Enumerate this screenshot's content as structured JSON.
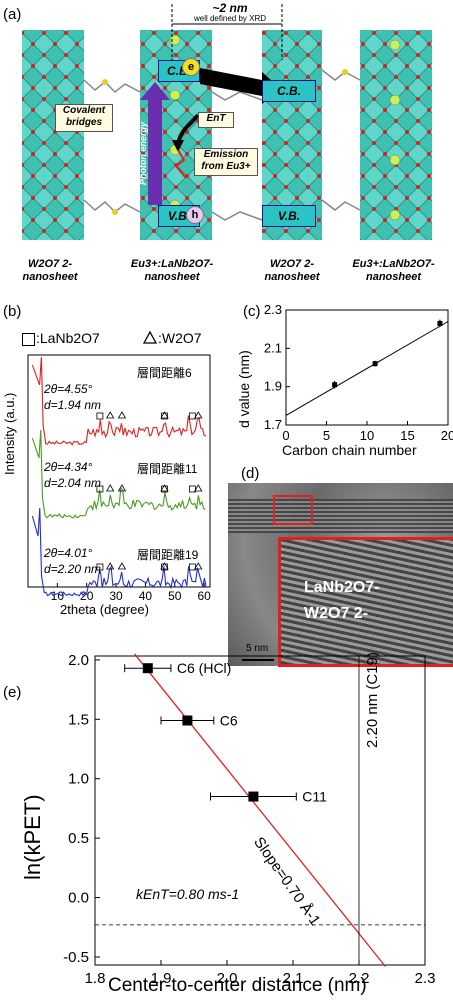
{
  "panel_a": {
    "label": "(a)",
    "dim_label": "~2 nm",
    "dim_sub": "well defined by XRD",
    "cb_label": "C.B.",
    "vb_label": "V.B.",
    "e_label": "e",
    "h_label": "h",
    "pet_label": "PET",
    "ent_label": "EnT",
    "photon_label": "Photon energy",
    "covalent_label": "Covalent bridges",
    "emission_label": "Emission from Eu3+",
    "sheets": [
      "W2O7 2- nanosheet",
      "Eu3+:LaNb2O7- nanosheet",
      "W2O7 2- nanosheet",
      "Eu3+:LaNb2O7- nanosheet"
    ]
  },
  "panel_b": {
    "label": "(b)",
    "legend_square": ":LaNb2O7",
    "legend_triangle": ":W2O7",
    "ylabel": "Intensity (a.u.)",
    "xlabel": "2theta (degree)",
    "xticks": [
      "10",
      "20",
      "30",
      "40",
      "50",
      "60"
    ],
    "traces": [
      {
        "name": "層間距離6",
        "color": "#e02020",
        "theta": "2θ=4.55°",
        "d": "d=1.94 nm"
      },
      {
        "name": "層間距離11",
        "color": "#4a9a20",
        "theta": "2θ=4.34°",
        "d": "d=2.04 nm"
      },
      {
        "name": "層間距離19",
        "color": "#2030d0",
        "theta": "2θ=4.01°",
        "d": "d=2.20 nm"
      }
    ]
  },
  "panel_c": {
    "label": "(c)",
    "xlabel": "Carbon chain number",
    "ylabel": "d value (nm)",
    "xticks": [
      "0",
      "5",
      "10",
      "15",
      "20"
    ],
    "yticks": [
      "1.7",
      "1.9",
      "2.1",
      "2.3"
    ]
  },
  "panel_d": {
    "label": "(d)",
    "inset_top": "LaNb2O7-",
    "inset_bottom": "W2O7 2-",
    "scale": "5 nm"
  },
  "panel_e": {
    "label": "(e)",
    "ylabel": "ln(kPET)",
    "xlabel": "Center-to-center distance (nm)",
    "vline_label": "2.20 nm (C19)",
    "hline_label": "kEnT=0.80 ms-1",
    "slope_label": "Slope=0.70 Å-1",
    "xticks": [
      "1.8",
      "1.9",
      "2.0",
      "2.1",
      "2.2",
      "2.3"
    ],
    "yticks": [
      "-0.5",
      "0.0",
      "0.5",
      "1.0",
      "1.5",
      "2.0"
    ]
  },
  "chart_data": [
    {
      "type": "scatter",
      "panel": "(c)",
      "xlabel": "Carbon chain number",
      "ylabel": "d value (nm)",
      "xlim": [
        0,
        20
      ],
      "ylim": [
        1.7,
        2.3
      ],
      "x": [
        6,
        11,
        19
      ],
      "y": [
        1.91,
        2.02,
        2.23
      ],
      "yerr": [
        0.02,
        0.015,
        0.02
      ],
      "fit": {
        "x": [
          0,
          20
        ],
        "y": [
          1.75,
          2.24
        ]
      }
    },
    {
      "type": "scatter",
      "panel": "(e)",
      "xlabel": "Center-to-center distance (nm)",
      "ylabel": "ln(kPET)",
      "xlim": [
        1.8,
        2.3
      ],
      "ylim": [
        -0.5,
        2.0
      ],
      "points": [
        {
          "label": "C6 (HCl)",
          "x": 1.88,
          "y": 1.93,
          "xerr": 0.035
        },
        {
          "label": "C6",
          "x": 1.94,
          "y": 1.49,
          "xerr": 0.04
        },
        {
          "label": "C11",
          "x": 2.04,
          "y": 0.85,
          "xerr": 0.065
        }
      ],
      "fit_line": {
        "x": [
          1.86,
          2.24
        ],
        "y": [
          2.05,
          -0.58
        ]
      },
      "vline_x": 2.2,
      "hline_y": -0.23
    },
    {
      "type": "line",
      "panel": "(b)",
      "xlabel": "2theta (degree)",
      "ylabel": "Intensity (a.u.)",
      "xlim": [
        0,
        62
      ],
      "series": [
        {
          "name": "層間距離6",
          "peak_2theta": 4.55,
          "d_nm": 1.94
        },
        {
          "name": "層間距離11",
          "peak_2theta": 4.34,
          "d_nm": 2.04
        },
        {
          "name": "層間距離19",
          "peak_2theta": 4.01,
          "d_nm": 2.2
        }
      ]
    }
  ]
}
